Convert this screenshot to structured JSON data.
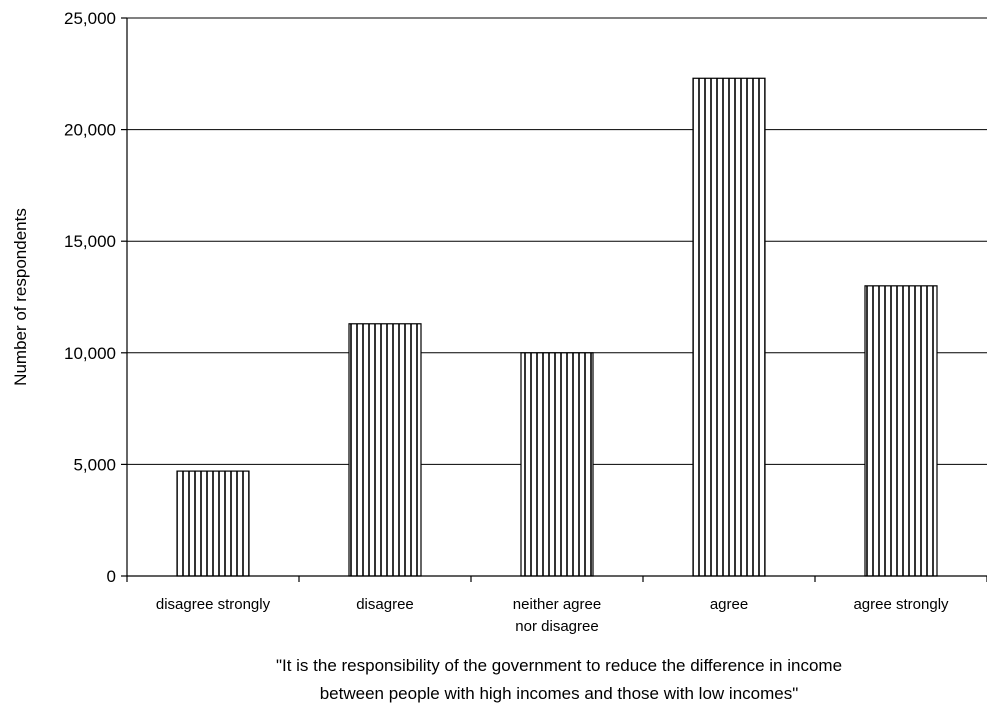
{
  "chart_data": {
    "type": "bar",
    "title": "",
    "categories": [
      [
        "disagree strongly"
      ],
      [
        "disagree"
      ],
      [
        "neither agree",
        "nor disagree"
      ],
      [
        "agree"
      ],
      [
        "agree strongly"
      ]
    ],
    "values": [
      4700,
      11300,
      10000,
      22300,
      13000
    ],
    "ylabel": "Number of respondents",
    "xlabel": [
      "\"It is the responsibility of the government to reduce the difference in income",
      "between people with high incomes and those with low incomes\""
    ],
    "ylim": [
      0,
      25000
    ],
    "yticks": [
      0,
      5000,
      10000,
      15000,
      20000,
      25000
    ],
    "ytick_labels": [
      "0",
      "5,000",
      "10,000",
      "15,000",
      "20,000",
      "25,000"
    ],
    "grid": true,
    "legend": "none",
    "bar_pattern": "vertical-hatch",
    "colors": {
      "bar_fill": "#ffffff",
      "bar_stroke": "#000000",
      "grid": "#000000"
    }
  }
}
